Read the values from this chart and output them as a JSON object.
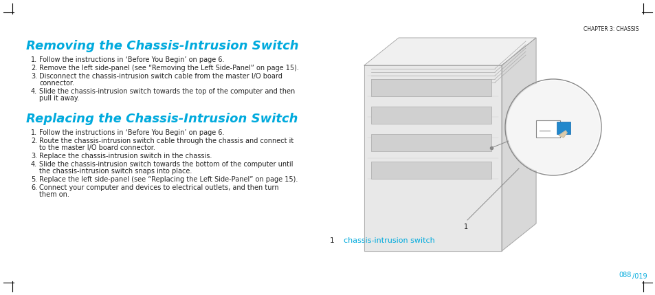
{
  "bg_color": "#ffffff",
  "border_color": "#000000",
  "cyan_color": "#00aadd",
  "text_color": "#333333",
  "dark_color": "#222222",
  "chapter_header": "CHAPTER 3: CHASSIS",
  "title1": "Removing the Chassis-Intrusion Switch",
  "title2": "Replacing the Chassis-Intrusion Switch",
  "steps_remove": [
    "Follow the instructions in ‘Before You Begin’ on page 6.",
    "Remove the left side-panel (see “Removing the Left Side-Panel” on page 15).",
    "Disconnect the chassis-intrusion switch cable from the master I/O board\n    connector.",
    "Slide the chassis-intrusion switch towards the top of the computer and then\n    pull it away."
  ],
  "steps_replace": [
    "Follow the instructions in ‘Before You Begin’ on page 6.",
    "Route the chassis-intrusion switch cable through the chassis and connect it\n    to the master I/O board connector.",
    "Replace the chassis-intrusion switch in the chassis.",
    "Slide the chassis-intrusion switch towards the bottom of the computer until\n    the chassis-intrusion switch snaps into place.",
    "Replace the left side-panel (see “Replacing the Left Side-Panel” on page 15).",
    "Connect your computer and devices to electrical outlets, and then turn\n    them on."
  ],
  "callout_label": "1",
  "callout_text": "chassis-intrusion switch",
  "page_prefix": "088",
  "page_number": "019"
}
